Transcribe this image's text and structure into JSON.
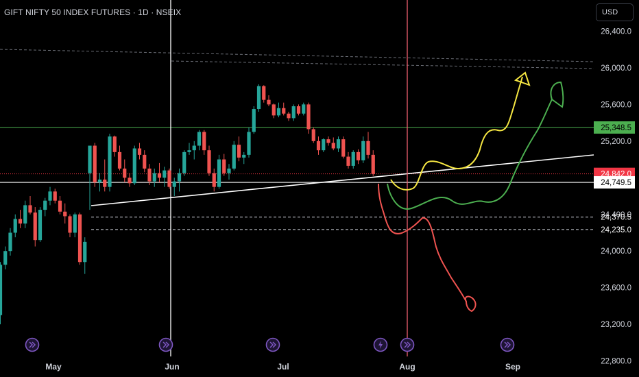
{
  "header": {
    "title": "GIFT NIFTY 50 INDEX FUTURES · 1D · NSEIX",
    "currency": "USD"
  },
  "colors": {
    "bull": "#26a69a",
    "bear": "#ef5350",
    "green_level": "#4caf50",
    "red_level": "#f23645",
    "yellow_path": "#f5e642",
    "green_path": "#4caf50",
    "red_path": "#ef5350",
    "event_icon": "#7e57c2"
  },
  "chart_data": {
    "type": "candlestick",
    "x_ticks": [
      "May",
      "Jun",
      "Jul",
      "Aug",
      "Sep"
    ],
    "y_ticks": [
      "26,400.0",
      "26,000.0",
      "25,600.0",
      "25,200.0",
      "24,800.0",
      "24,400.0",
      "24,000.0",
      "23,600.0",
      "23,200.0",
      "22,800.0"
    ],
    "ylim": [
      22700,
      26650
    ],
    "price_labels": [
      {
        "text": "25,348.5",
        "value": 25348.5,
        "style": "green"
      },
      {
        "text": "24,842.0",
        "value": 24842,
        "style": "red"
      },
      {
        "text": "24,749.5",
        "value": 24749.5,
        "style": "white"
      },
      {
        "text": "24,370.5",
        "value": 24370.5,
        "style": "plain"
      },
      {
        "text": "24,235.0",
        "value": 24235,
        "style": "plain"
      }
    ],
    "candles": [
      [
        23300,
        23880,
        23200,
        23850
      ],
      [
        23850,
        24050,
        23800,
        24000
      ],
      [
        24000,
        24250,
        23950,
        24200
      ],
      [
        24200,
        24400,
        24150,
        24350
      ],
      [
        24350,
        24450,
        24250,
        24300
      ],
      [
        24300,
        24550,
        24250,
        24500
      ],
      [
        24500,
        24600,
        24400,
        24420
      ],
      [
        24420,
        24480,
        24050,
        24120
      ],
      [
        24120,
        24480,
        24100,
        24450
      ],
      [
        24450,
        24580,
        24380,
        24550
      ],
      [
        24550,
        24700,
        24500,
        24650
      ],
      [
        24650,
        24680,
        24520,
        24550
      ],
      [
        24550,
        24600,
        24400,
        24430
      ],
      [
        24430,
        24520,
        24300,
        24380
      ],
      [
        24380,
        24400,
        24150,
        24200
      ],
      [
        24200,
        24420,
        24150,
        24400
      ],
      [
        24400,
        24420,
        23850,
        23880
      ],
      [
        23880,
        24150,
        23750,
        24100
      ],
      [
        24850,
        25150,
        24450,
        25150
      ],
      [
        25150,
        25180,
        24700,
        24750
      ],
      [
        24750,
        24850,
        24650,
        24780
      ],
      [
        24780,
        25000,
        24650,
        24700
      ],
      [
        24700,
        25280,
        24650,
        25250
      ],
      [
        25250,
        25260,
        25030,
        25080
      ],
      [
        25080,
        25150,
        24880,
        24900
      ],
      [
        24900,
        25000,
        24750,
        24800
      ],
      [
        24800,
        24850,
        24700,
        24740
      ],
      [
        24740,
        25150,
        24720,
        25120
      ],
      [
        25120,
        25180,
        25000,
        25050
      ],
      [
        25050,
        25100,
        24860,
        24900
      ],
      [
        24900,
        24950,
        24720,
        24760
      ],
      [
        24760,
        24900,
        24700,
        24850
      ],
      [
        24850,
        24960,
        24750,
        24800
      ],
      [
        24800,
        24920,
        24700,
        24880
      ],
      [
        24880,
        24900,
        24680,
        24700
      ],
      [
        24700,
        24800,
        24600,
        24760
      ],
      [
        24760,
        24900,
        24650,
        24850
      ],
      [
        24850,
        25100,
        24820,
        25080
      ],
      [
        25080,
        25180,
        25050,
        25100
      ],
      [
        25100,
        25200,
        25000,
        25150
      ],
      [
        25150,
        25320,
        25100,
        25300
      ],
      [
        25300,
        25320,
        25050,
        25100
      ],
      [
        25100,
        25150,
        24820,
        24850
      ],
      [
        24850,
        24900,
        24650,
        24700
      ],
      [
        24700,
        25050,
        24680,
        25000
      ],
      [
        25000,
        25060,
        24820,
        24850
      ],
      [
        24850,
        24950,
        24780,
        24900
      ],
      [
        24900,
        25200,
        24880,
        25160
      ],
      [
        25160,
        25250,
        24980,
        25020
      ],
      [
        25020,
        25080,
        24950,
        25050
      ],
      [
        25050,
        25350,
        25020,
        25300
      ],
      [
        25300,
        25580,
        25280,
        25550
      ],
      [
        25550,
        25820,
        25520,
        25800
      ],
      [
        25800,
        25810,
        25620,
        25650
      ],
      [
        25650,
        25700,
        25580,
        25600
      ],
      [
        25600,
        25610,
        25450,
        25480
      ],
      [
        25480,
        25620,
        25460,
        25560
      ],
      [
        25560,
        25620,
        25480,
        25500
      ],
      [
        25500,
        25520,
        25420,
        25450
      ],
      [
        25450,
        25600,
        25420,
        25580
      ],
      [
        25580,
        25600,
        25480,
        25500
      ],
      [
        25500,
        25620,
        25480,
        25600
      ],
      [
        25600,
        25620,
        25280,
        25330
      ],
      [
        25330,
        25350,
        25180,
        25200
      ],
      [
        25200,
        25250,
        25050,
        25100
      ],
      [
        25100,
        25230,
        25080,
        25220
      ],
      [
        25220,
        25250,
        25150,
        25180
      ],
      [
        25180,
        25240,
        25100,
        25120
      ],
      [
        25120,
        25250,
        25080,
        25220
      ],
      [
        25220,
        25250,
        25010,
        25030
      ],
      [
        25030,
        25080,
        24900,
        24930
      ],
      [
        24930,
        25100,
        24900,
        25080
      ],
      [
        25080,
        25110,
        24950,
        24990
      ],
      [
        24990,
        25250,
        24960,
        25200
      ],
      [
        25200,
        25300,
        25010,
        25050
      ],
      [
        25050,
        25100,
        24820,
        24842
      ]
    ]
  }
}
